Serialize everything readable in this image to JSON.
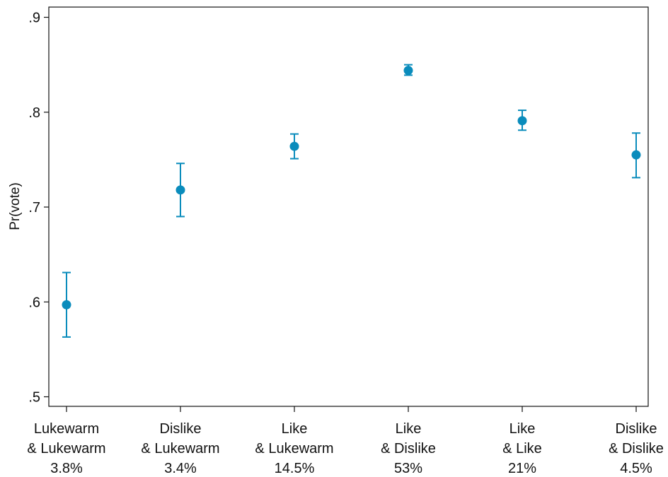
{
  "chart_data": {
    "type": "scatter",
    "ylabel": "Pr(vote)",
    "ylim": [
      0.5,
      0.9
    ],
    "yticks": [
      {
        "value": 0.5,
        "label": ".5"
      },
      {
        "value": 0.6,
        "label": ".6"
      },
      {
        "value": 0.7,
        "label": ".7"
      },
      {
        "value": 0.8,
        "label": ".8"
      },
      {
        "value": 0.9,
        "label": ".9"
      }
    ],
    "categories": [
      {
        "line1": "Lukewarm",
        "line2": "& Lukewarm",
        "share": "3.8%"
      },
      {
        "line1": "Dislike",
        "line2": "& Lukewarm",
        "share": "3.4%"
      },
      {
        "line1": "Like",
        "line2": "& Lukewarm",
        "share": "14.5%"
      },
      {
        "line1": "Like",
        "line2": "& Dislike",
        "share": "53%"
      },
      {
        "line1": "Like",
        "line2": "& Like",
        "share": "21%"
      },
      {
        "line1": "Dislike",
        "line2": "& Dislike",
        "share": "4.5%"
      }
    ],
    "points": [
      {
        "y": 0.597,
        "lo": 0.563,
        "hi": 0.631
      },
      {
        "y": 0.718,
        "lo": 0.69,
        "hi": 0.746
      },
      {
        "y": 0.764,
        "lo": 0.751,
        "hi": 0.777
      },
      {
        "y": 0.844,
        "lo": 0.839,
        "hi": 0.85
      },
      {
        "y": 0.791,
        "lo": 0.781,
        "hi": 0.802
      },
      {
        "y": 0.755,
        "lo": 0.731,
        "hi": 0.778
      }
    ],
    "grid": false,
    "legend": "none",
    "marker_color": "#0a8cbc",
    "axis_color": "#111111"
  }
}
